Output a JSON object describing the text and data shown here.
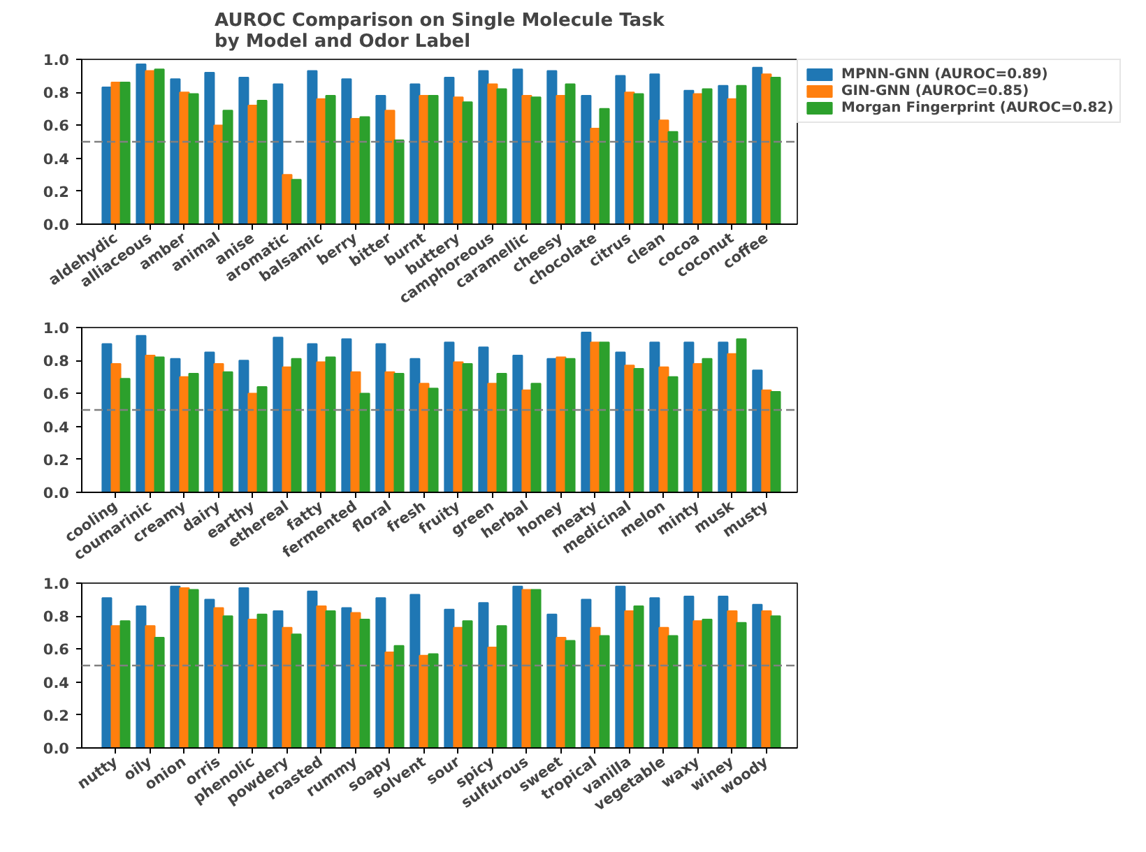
{
  "chart_data": [
    {
      "type": "bar",
      "title": "AUROC Comparison on Single Molecule Task\nby Model and Odor Label",
      "legend": "top right",
      "categories": [
        "aldehydic",
        "alliaceous",
        "amber",
        "animal",
        "anise",
        "aromatic",
        "balsamic",
        "berry",
        "bitter",
        "burnt",
        "buttery",
        "camphoreous",
        "caramellic",
        "cheesy",
        "chocolate",
        "citrus",
        "clean",
        "cocoa",
        "coconut",
        "coffee"
      ],
      "series": [
        {
          "name": "MPNN-GNN (AUROC=0.89)",
          "color": "#1f77b4",
          "values": [
            0.83,
            0.97,
            0.88,
            0.92,
            0.89,
            0.85,
            0.93,
            0.88,
            0.78,
            0.85,
            0.89,
            0.93,
            0.94,
            0.93,
            0.78,
            0.9,
            0.91,
            0.81,
            0.84,
            0.95
          ]
        },
        {
          "name": "GIN-GNN (AUROC=0.85)",
          "color": "#ff7f0e",
          "values": [
            0.86,
            0.93,
            0.8,
            0.6,
            0.72,
            0.3,
            0.76,
            0.64,
            0.69,
            0.78,
            0.77,
            0.85,
            0.78,
            0.78,
            0.58,
            0.8,
            0.63,
            0.79,
            0.76,
            0.91
          ]
        },
        {
          "name": "Morgan Fingerprint (AUROC=0.82)",
          "color": "#2ca02c",
          "values": [
            0.86,
            0.94,
            0.79,
            0.69,
            0.75,
            0.27,
            0.78,
            0.65,
            0.51,
            0.78,
            0.74,
            0.82,
            0.77,
            0.85,
            0.7,
            0.79,
            0.56,
            0.82,
            0.84,
            0.89
          ]
        }
      ],
      "ylim": [
        0,
        1.0
      ],
      "yticks": [
        {
          "value": 0,
          "label": "0.0"
        },
        {
          "value": 0.2,
          "label": "0.2"
        },
        {
          "value": 0.4,
          "label": "0.4"
        },
        {
          "value": 0.6,
          "label": "0.6"
        },
        {
          "value": 0.8,
          "label": "0.8"
        },
        {
          "value": 1.0,
          "label": "1.0"
        }
      ],
      "ref_lines": [
        {
          "axis": "y",
          "value": 0.5,
          "color": "#808080",
          "line_style": "dashed"
        }
      ]
    },
    {
      "type": "bar",
      "categories": [
        "cooling",
        "coumarinic",
        "creamy",
        "dairy",
        "earthy",
        "ethereal",
        "fatty",
        "fermented",
        "floral",
        "fresh",
        "fruity",
        "green",
        "herbal",
        "honey",
        "meaty",
        "medicinal",
        "melon",
        "minty",
        "musk",
        "musty"
      ],
      "series": [
        {
          "color": "#1f77b4",
          "values": [
            0.9,
            0.95,
            0.81,
            0.85,
            0.8,
            0.94,
            0.9,
            0.93,
            0.9,
            0.81,
            0.91,
            0.88,
            0.83,
            0.81,
            0.97,
            0.85,
            0.91,
            0.91,
            0.91,
            0.74
          ]
        },
        {
          "color": "#ff7f0e",
          "values": [
            0.78,
            0.83,
            0.7,
            0.78,
            0.6,
            0.76,
            0.79,
            0.73,
            0.73,
            0.66,
            0.79,
            0.66,
            0.62,
            0.82,
            0.91,
            0.77,
            0.76,
            0.78,
            0.84,
            0.62
          ]
        },
        {
          "color": "#2ca02c",
          "values": [
            0.69,
            0.82,
            0.72,
            0.73,
            0.64,
            0.81,
            0.82,
            0.6,
            0.72,
            0.63,
            0.78,
            0.72,
            0.66,
            0.81,
            0.91,
            0.75,
            0.7,
            0.81,
            0.93,
            0.61
          ]
        }
      ],
      "ylim": [
        0,
        1.0
      ],
      "yticks": [
        {
          "value": 0,
          "label": "0.0"
        },
        {
          "value": 0.2,
          "label": "0.2"
        },
        {
          "value": 0.4,
          "label": "0.4"
        },
        {
          "value": 0.6,
          "label": "0.6"
        },
        {
          "value": 0.8,
          "label": "0.8"
        },
        {
          "value": 1.0,
          "label": "1.0"
        }
      ],
      "ref_lines": [
        {
          "axis": "y",
          "value": 0.5,
          "color": "#808080",
          "line_style": "dashed"
        }
      ]
    },
    {
      "type": "bar",
      "categories": [
        "nutty",
        "oily",
        "onion",
        "orris",
        "phenolic",
        "powdery",
        "roasted",
        "rummy",
        "soapy",
        "solvent",
        "sour",
        "spicy",
        "sulfurous",
        "sweet",
        "tropical",
        "vanilla",
        "vegetable",
        "waxy",
        "winey",
        "woody"
      ],
      "series": [
        {
          "color": "#1f77b4",
          "values": [
            0.91,
            0.86,
            0.98,
            0.9,
            0.97,
            0.83,
            0.95,
            0.85,
            0.91,
            0.93,
            0.84,
            0.88,
            0.98,
            0.81,
            0.9,
            0.98,
            0.91,
            0.92,
            0.92,
            0.87
          ]
        },
        {
          "color": "#ff7f0e",
          "values": [
            0.74,
            0.74,
            0.97,
            0.85,
            0.78,
            0.73,
            0.86,
            0.82,
            0.58,
            0.56,
            0.73,
            0.61,
            0.96,
            0.67,
            0.73,
            0.83,
            0.73,
            0.77,
            0.83,
            0.83
          ]
        },
        {
          "color": "#2ca02c",
          "values": [
            0.77,
            0.67,
            0.96,
            0.8,
            0.81,
            0.69,
            0.83,
            0.78,
            0.62,
            0.57,
            0.77,
            0.74,
            0.96,
            0.65,
            0.68,
            0.86,
            0.68,
            0.78,
            0.76,
            0.8
          ]
        }
      ],
      "ylim": [
        0,
        1.0
      ],
      "yticks": [
        {
          "value": 0,
          "label": "0.0"
        },
        {
          "value": 0.2,
          "label": "0.2"
        },
        {
          "value": 0.4,
          "label": "0.4"
        },
        {
          "value": 0.6,
          "label": "0.6"
        },
        {
          "value": 0.8,
          "label": "0.8"
        },
        {
          "value": 1.0,
          "label": "1.0"
        }
      ],
      "ref_lines": [
        {
          "axis": "y",
          "value": 0.5,
          "color": "#808080",
          "line_style": "dashed"
        }
      ]
    }
  ]
}
